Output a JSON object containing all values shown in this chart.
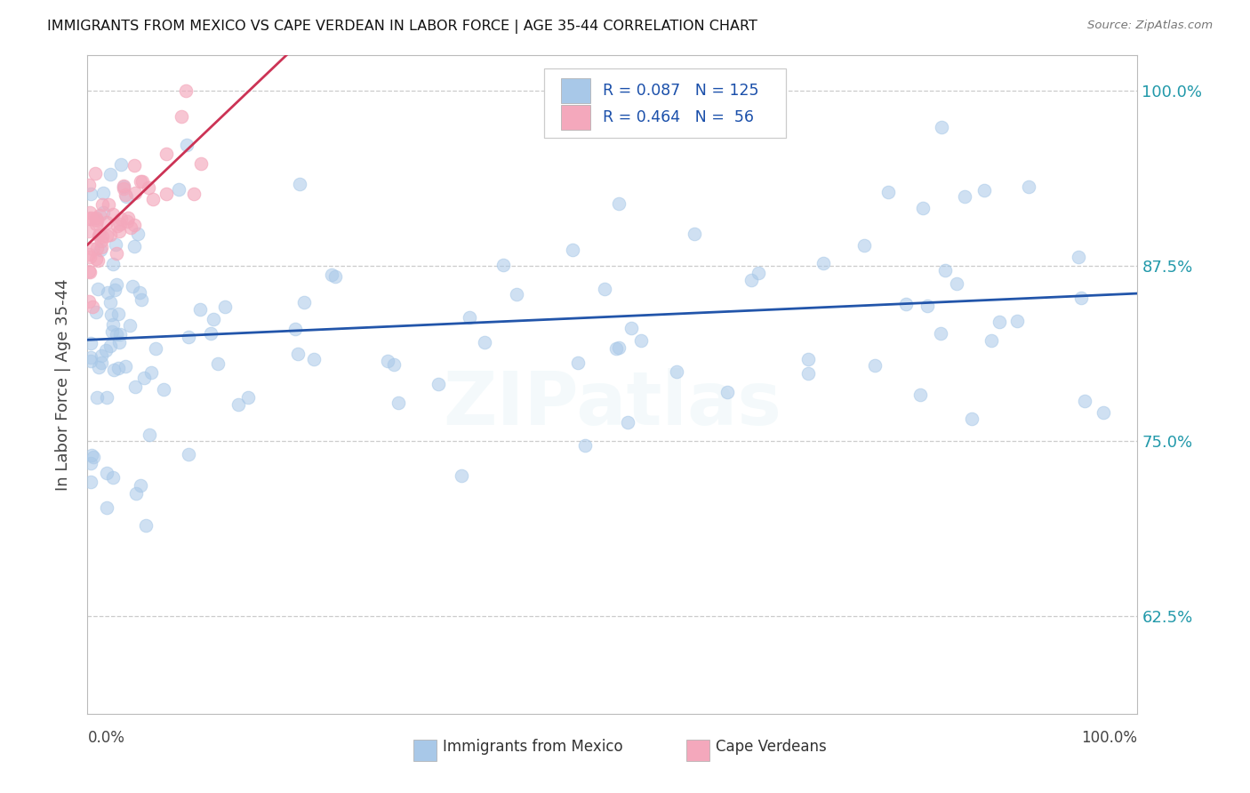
{
  "title": "IMMIGRANTS FROM MEXICO VS CAPE VERDEAN IN LABOR FORCE | AGE 35-44 CORRELATION CHART",
  "source": "Source: ZipAtlas.com",
  "ylabel": "In Labor Force | Age 35-44",
  "xlim": [
    0.0,
    1.0
  ],
  "ylim": [
    0.555,
    1.025
  ],
  "blue_R": 0.087,
  "blue_N": 125,
  "pink_R": 0.464,
  "pink_N": 56,
  "blue_color": "#a8c8e8",
  "pink_color": "#f4a8bc",
  "blue_line_color": "#2255aa",
  "pink_line_color": "#cc3355",
  "legend_label_blue": "Immigrants from Mexico",
  "legend_label_pink": "Cape Verdeans",
  "watermark": "ZIPatlas",
  "ytick_vals": [
    0.625,
    0.75,
    0.875,
    1.0
  ],
  "ytick_labels": [
    "62.5%",
    "75.0%",
    "87.5%",
    "100.0%"
  ],
  "legend_text_color": "#1a4faa"
}
